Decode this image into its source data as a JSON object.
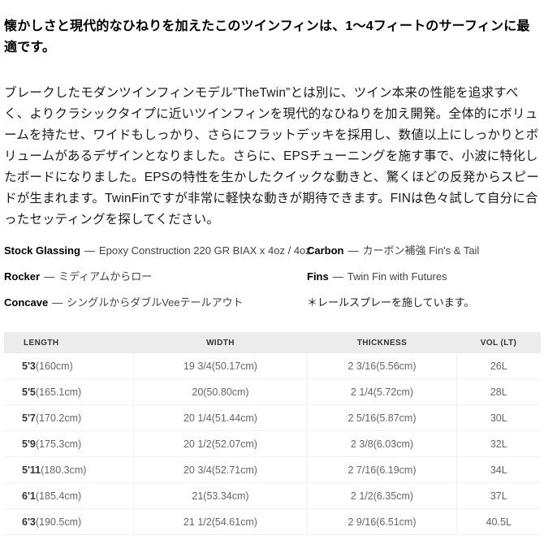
{
  "heading": "懐かしさと現代的なひねりを加えたこのツインフィンは、1〜4フィートのサーフィンに最適です。",
  "description": "ブレークしたモダンツインフィンモデル”TheTwin”とは別に、ツイン本来の性能を追求すべく、よりクラシックタイプに近いツインフィンを現代的なひねりを加え開発。全体的にボリュームを持たせ、ワイドもしっかり、さらにフラットデッキを採用し、数値以上にしっかりとボリュームがあるデザインとなりました。さらに、EPSチューニングを施す事で、小波に特化したボードになりました。EPSの特性を生かしたクイックな動きと、驚くほどの反発からスピードが生まれます。TwinFinですが非常に軽快な動きが期待できます。FINは色々試して自分に合ったセッティングを探してください。",
  "specs": {
    "separator": "—",
    "left": [
      {
        "label": "Stock Glassing",
        "value": "Epoxy Construction 220 GR BIAX x 4oz / 4oz"
      },
      {
        "label": "Rocker",
        "value": "ミディアムからロー"
      },
      {
        "label": "Concave",
        "value": "シングルからダブルVeeテールアウト"
      }
    ],
    "right": [
      {
        "label": "Carbon",
        "value": "カーボン補強 Fin's & Tail"
      },
      {
        "label": "Fins",
        "value": "Twin Fin with Futures"
      }
    ],
    "note": "＊レールスプレーを施しています。"
  },
  "size_table": {
    "columns": [
      "LENGTH",
      "WIDTH",
      "THICKNESS",
      "VOL (LT)"
    ],
    "rows": [
      {
        "length_bold": "5'3",
        "length_rest": "(160cm)",
        "width": "19 3/4(50.17cm)",
        "thickness": "2 3/16(5.56cm)",
        "vol": "26L"
      },
      {
        "length_bold": "5'5",
        "length_rest": "(165.1cm)",
        "width": "20(50.80cm)",
        "thickness": "2 1/4(5.72cm)",
        "vol": "28L"
      },
      {
        "length_bold": "5'7",
        "length_rest": "(170.2cm)",
        "width": "20 1/4(51.44cm)",
        "thickness": "2 5/16(5.87cm)",
        "vol": "30L"
      },
      {
        "length_bold": "5'9",
        "length_rest": "(175.3cm)",
        "width": "20 1/2(52.07cm)",
        "thickness": "2 3/8(6.03cm)",
        "vol": "32L"
      },
      {
        "length_bold": "5'11",
        "length_rest": "(180.3cm)",
        "width": "20 3/4(52.71cm)",
        "thickness": "2 7/16(6.19cm)",
        "vol": "34L"
      },
      {
        "length_bold": "6'1",
        "length_rest": "(185.4cm)",
        "width": "21(53.34cm)",
        "thickness": "2 1/2(6.35cm)",
        "vol": "37L"
      },
      {
        "length_bold": "6'3",
        "length_rest": "(190.5cm)",
        "width": "21 1/2(54.61cm)",
        "thickness": "2 9/16(6.51cm)",
        "vol": "40.5L"
      }
    ]
  }
}
